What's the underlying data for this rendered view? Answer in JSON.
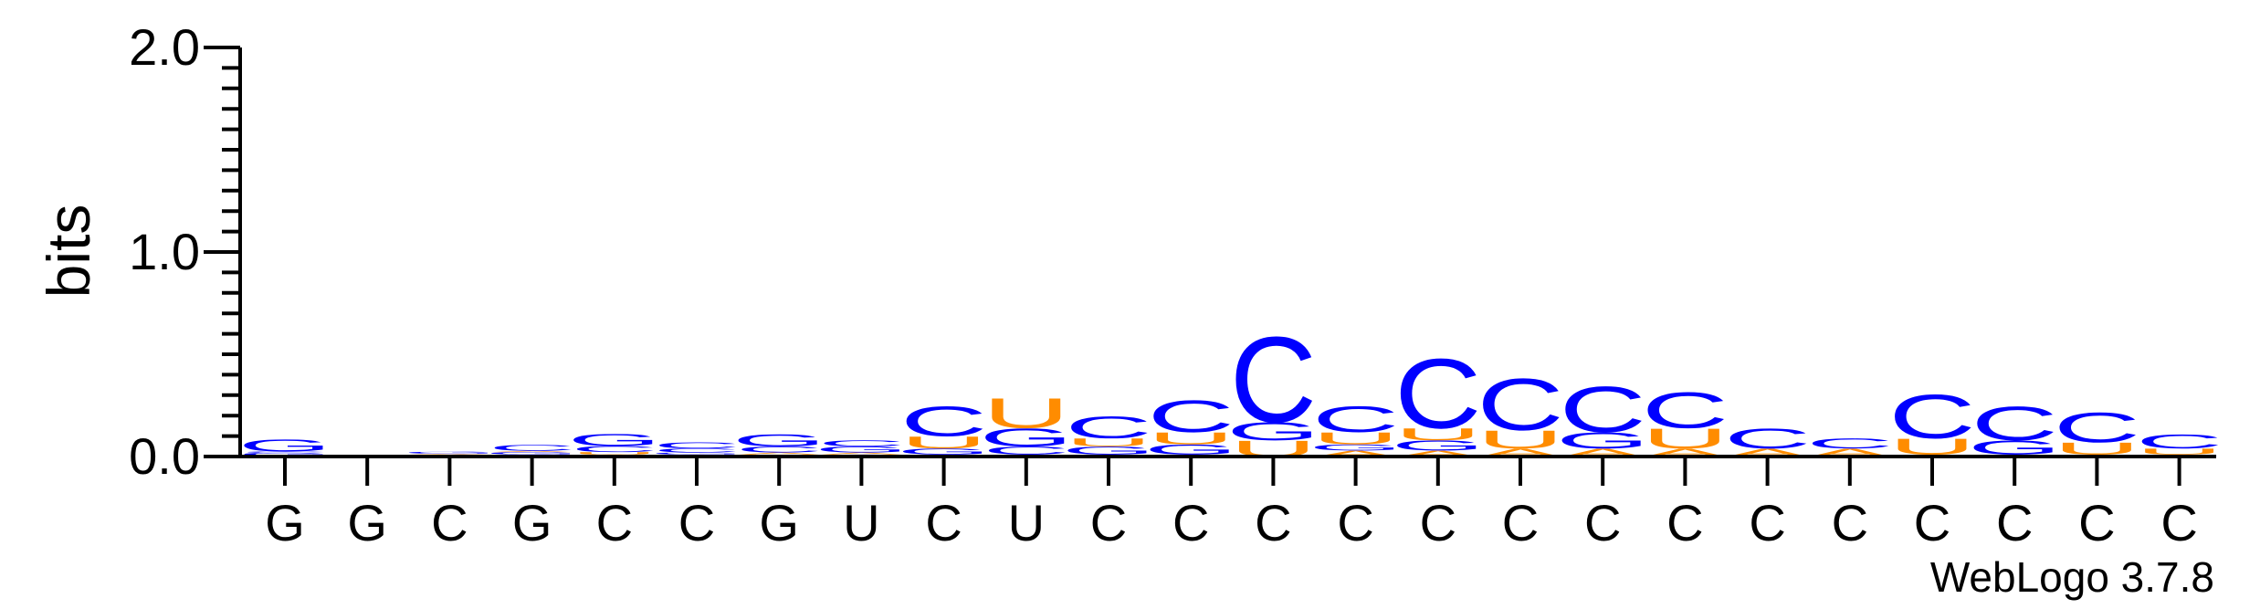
{
  "chart_data": {
    "type": "sequence-logo",
    "title": "",
    "ylabel": "bits",
    "ylim": [
      0,
      2.0
    ],
    "yticks": [
      "0.0",
      "1.0",
      "2.0"
    ],
    "categories": [
      "G",
      "G",
      "C",
      "G",
      "C",
      "C",
      "G",
      "U",
      "C",
      "U",
      "C",
      "C",
      "C",
      "C",
      "C",
      "C",
      "C",
      "C",
      "C",
      "C",
      "C",
      "C",
      "C",
      "C"
    ],
    "credit": "WebLogo 3.7.8",
    "colors": {
      "C": "#0000ff",
      "G": "#0000ff",
      "U": "#ff8c00",
      "A": "#ff8c00"
    },
    "stacks": [
      [
        [
          "A",
          0.004
        ],
        [
          "G",
          0.015
        ],
        [
          "C",
          0.006
        ],
        [
          "G",
          0.06
        ]
      ],
      [],
      [
        [
          "C",
          0.01
        ],
        [
          "A",
          0.004
        ],
        [
          "G",
          0.01
        ]
      ],
      [
        [
          "C",
          0.01
        ],
        [
          "G",
          0.012
        ],
        [
          "A",
          0.006
        ],
        [
          "C",
          0.03
        ]
      ],
      [
        [
          "A",
          0.01
        ],
        [
          "U",
          0.012
        ],
        [
          "C",
          0.03
        ],
        [
          "G",
          0.06
        ]
      ],
      [
        [
          "A",
          0.01
        ],
        [
          "G",
          0.01
        ],
        [
          "C",
          0.02
        ],
        [
          "C",
          0.03
        ]
      ],
      [
        [
          "U",
          0.01
        ],
        [
          "A",
          0.01
        ],
        [
          "C",
          0.03
        ],
        [
          "G",
          0.06
        ]
      ],
      [
        [
          "C",
          0.01
        ],
        [
          "A",
          0.01
        ],
        [
          "G",
          0.03
        ],
        [
          "C",
          0.03
        ]
      ],
      [
        [
          "A",
          0.01
        ],
        [
          "G",
          0.03
        ],
        [
          "U",
          0.06
        ],
        [
          "C",
          0.15
        ]
      ],
      [
        [
          "A",
          0.01
        ],
        [
          "C",
          0.04
        ],
        [
          "G",
          0.09
        ],
        [
          "U",
          0.15
        ]
      ],
      [
        [
          "A",
          0.01
        ],
        [
          "G",
          0.04
        ],
        [
          "U",
          0.04
        ],
        [
          "C",
          0.11
        ]
      ],
      [
        [
          "A",
          0.01
        ],
        [
          "G",
          0.05
        ],
        [
          "U",
          0.06
        ],
        [
          "C",
          0.16
        ]
      ],
      [
        [
          "U",
          0.08
        ],
        [
          "G",
          0.09
        ],
        [
          "C",
          0.43
        ]
      ],
      [
        [
          "A",
          0.03
        ],
        [
          "G",
          0.03
        ],
        [
          "U",
          0.06
        ],
        [
          "C",
          0.13
        ]
      ],
      [
        [
          "A",
          0.03
        ],
        [
          "G",
          0.05
        ],
        [
          "U",
          0.06
        ],
        [
          "C",
          0.35
        ]
      ],
      [
        [
          "A",
          0.04
        ],
        [
          "U",
          0.09
        ],
        [
          "C",
          0.26
        ]
      ],
      [
        [
          "A",
          0.04
        ],
        [
          "G",
          0.08
        ],
        [
          "C",
          0.23
        ]
      ],
      [
        [
          "A",
          0.04
        ],
        [
          "U",
          0.1
        ],
        [
          "C",
          0.18
        ]
      ],
      [
        [
          "A",
          0.04
        ],
        [
          "C",
          0.1
        ]
      ],
      [
        [
          "A",
          0.04
        ],
        [
          "C",
          0.05
        ]
      ],
      [
        [
          "A",
          0.01
        ],
        [
          "U",
          0.08
        ],
        [
          "C",
          0.22
        ]
      ],
      [
        [
          "A",
          0.01
        ],
        [
          "G",
          0.07
        ],
        [
          "C",
          0.17
        ]
      ],
      [
        [
          "A",
          0.01
        ],
        [
          "U",
          0.06
        ],
        [
          "C",
          0.15
        ]
      ],
      [
        [
          "C",
          0.01
        ],
        [
          "U",
          0.03
        ],
        [
          "C",
          0.07
        ]
      ]
    ]
  }
}
